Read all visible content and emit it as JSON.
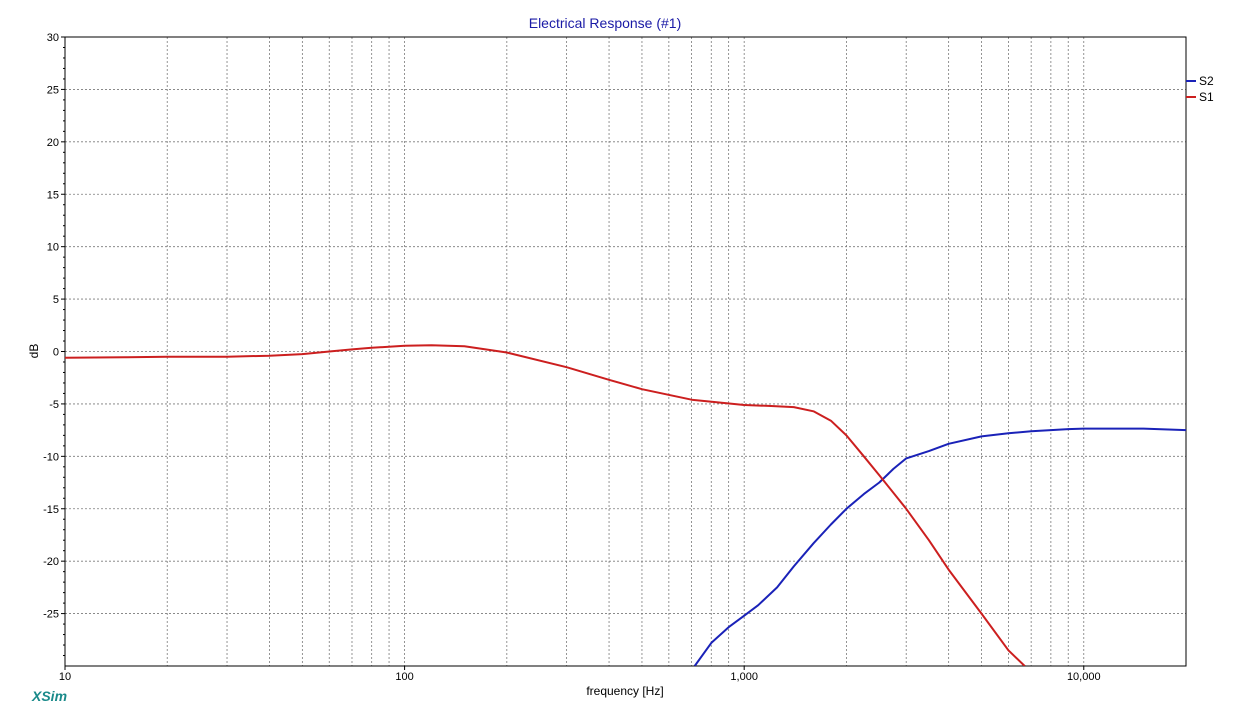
{
  "app": {
    "brand": "XSim",
    "brand_color": "#1a8a8a"
  },
  "chart_data": {
    "type": "line",
    "title": "Electrical Response (#1)",
    "title_color": "#1a1aa6",
    "xlabel": "frequency [Hz]",
    "ylabel": "dB",
    "x_scale": "log",
    "xlim": [
      10,
      20000
    ],
    "ylim": [
      -30,
      30
    ],
    "x_ticks": [
      10,
      100,
      1000,
      10000
    ],
    "x_tick_labels": [
      "10",
      "100",
      "1,000",
      "10,000"
    ],
    "y_ticks": [
      30,
      25,
      20,
      15,
      10,
      5,
      0,
      -5,
      -10,
      -15,
      -20,
      -25
    ],
    "y_tick_labels": [
      "30",
      "25",
      "20",
      "15",
      "10",
      "5",
      "0",
      "-5",
      "-10",
      "-15",
      "-20",
      "-25"
    ],
    "grid": true,
    "legend_position": "right",
    "series": [
      {
        "name": "S2",
        "color": "#1a22b8",
        "x": [
          715,
          800,
          900,
          1000,
          1100,
          1250,
          1400,
          1600,
          1800,
          2000,
          2250,
          2500,
          2750,
          3000,
          3500,
          4000,
          5000,
          6000,
          7000,
          8000,
          9000,
          10000,
          12000,
          15000,
          20000
        ],
        "y": [
          -30,
          -27.8,
          -26.3,
          -25.2,
          -24.2,
          -22.5,
          -20.5,
          -18.3,
          -16.5,
          -15.0,
          -13.6,
          -12.5,
          -11.2,
          -10.2,
          -9.5,
          -8.8,
          -8.1,
          -7.8,
          -7.6,
          -7.5,
          -7.4,
          -7.35,
          -7.35,
          -7.35,
          -7.5
        ]
      },
      {
        "name": "S1",
        "color": "#cc1f1f",
        "x": [
          10,
          15,
          20,
          30,
          40,
          50,
          60,
          70,
          80,
          100,
          120,
          150,
          200,
          300,
          400,
          500,
          700,
          1000,
          1200,
          1400,
          1600,
          1800,
          2000,
          2250,
          2500,
          3000,
          3500,
          4000,
          5000,
          6000,
          6700
        ],
        "y": [
          -0.6,
          -0.55,
          -0.5,
          -0.5,
          -0.4,
          -0.25,
          0.0,
          0.2,
          0.35,
          0.55,
          0.6,
          0.5,
          -0.1,
          -1.5,
          -2.7,
          -3.6,
          -4.6,
          -5.1,
          -5.2,
          -5.3,
          -5.7,
          -6.6,
          -8.0,
          -10.0,
          -11.8,
          -15.0,
          -18.0,
          -20.8,
          -25.0,
          -28.5,
          -30.0
        ]
      }
    ]
  }
}
